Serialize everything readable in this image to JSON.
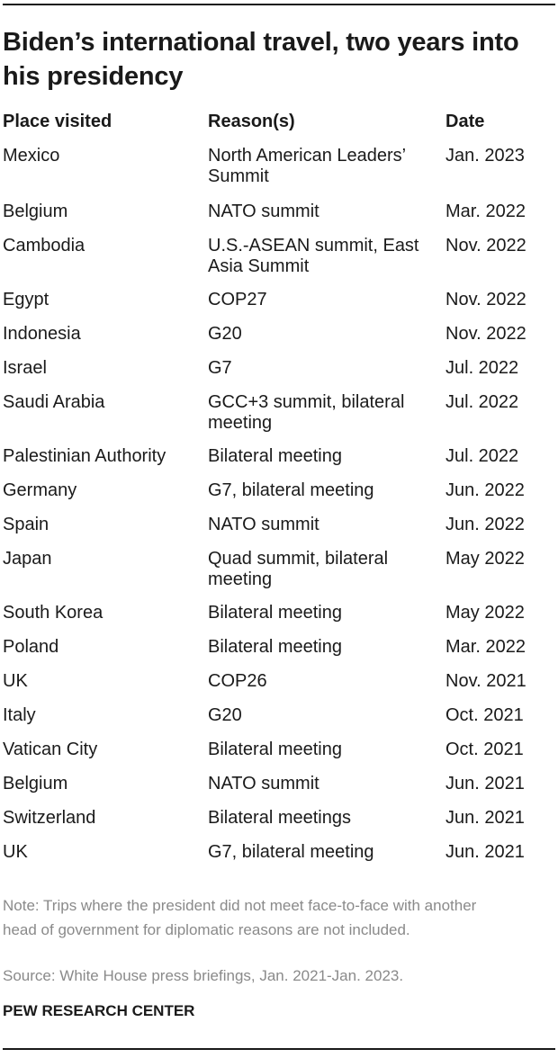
{
  "title": "Biden’s international travel, two years into his presidency",
  "columns": [
    "Place visited",
    "Reason(s)",
    "Date"
  ],
  "rows": [
    {
      "place": "Mexico",
      "reason": "North American Leaders’ Summit",
      "date": "Jan. 2023"
    },
    {
      "place": "Belgium",
      "reason": "NATO summit",
      "date": "Mar. 2022"
    },
    {
      "place": "Cambodia",
      "reason": "U.S.-ASEAN summit, East Asia Summit",
      "date": "Nov. 2022"
    },
    {
      "place": "Egypt",
      "reason": "COP27",
      "date": "Nov. 2022"
    },
    {
      "place": "Indonesia",
      "reason": "G20",
      "date": "Nov. 2022"
    },
    {
      "place": "Israel",
      "reason": "G7",
      "date": "Jul. 2022"
    },
    {
      "place": "Saudi Arabia",
      "reason": "GCC+3 summit, bilateral meeting",
      "date": "Jul. 2022"
    },
    {
      "place": "Palestinian Authority",
      "reason": "Bilateral meeting",
      "date": "Jul. 2022"
    },
    {
      "place": "Germany",
      "reason": "G7, bilateral meeting",
      "date": "Jun. 2022"
    },
    {
      "place": "Spain",
      "reason": "NATO summit",
      "date": "Jun. 2022"
    },
    {
      "place": "Japan",
      "reason": "Quad summit, bilateral meeting",
      "date": "May 2022"
    },
    {
      "place": "South Korea",
      "reason": "Bilateral meeting",
      "date": "May 2022"
    },
    {
      "place": "Poland",
      "reason": "Bilateral meeting",
      "date": "Mar. 2022"
    },
    {
      "place": "UK",
      "reason": "COP26",
      "date": "Nov. 2021"
    },
    {
      "place": "Italy",
      "reason": "G20",
      "date": "Oct. 2021"
    },
    {
      "place": "Vatican City",
      "reason": "Bilateral meeting",
      "date": "Oct. 2021"
    },
    {
      "place": "Belgium",
      "reason": "NATO summit",
      "date": "Jun. 2021"
    },
    {
      "place": "Switzerland",
      "reason": "Bilateral meetings",
      "date": "Jun. 2021"
    },
    {
      "place": "UK",
      "reason": "G7, bilateral meeting",
      "date": "Jun. 2021"
    }
  ],
  "note": "Note: Trips where the president did not meet face-to-face with another head of government for diplomatic reasons are not included.",
  "source": "Source: White House press briefings, Jan. 2021-Jan. 2023.",
  "org": "PEW RESEARCH CENTER"
}
